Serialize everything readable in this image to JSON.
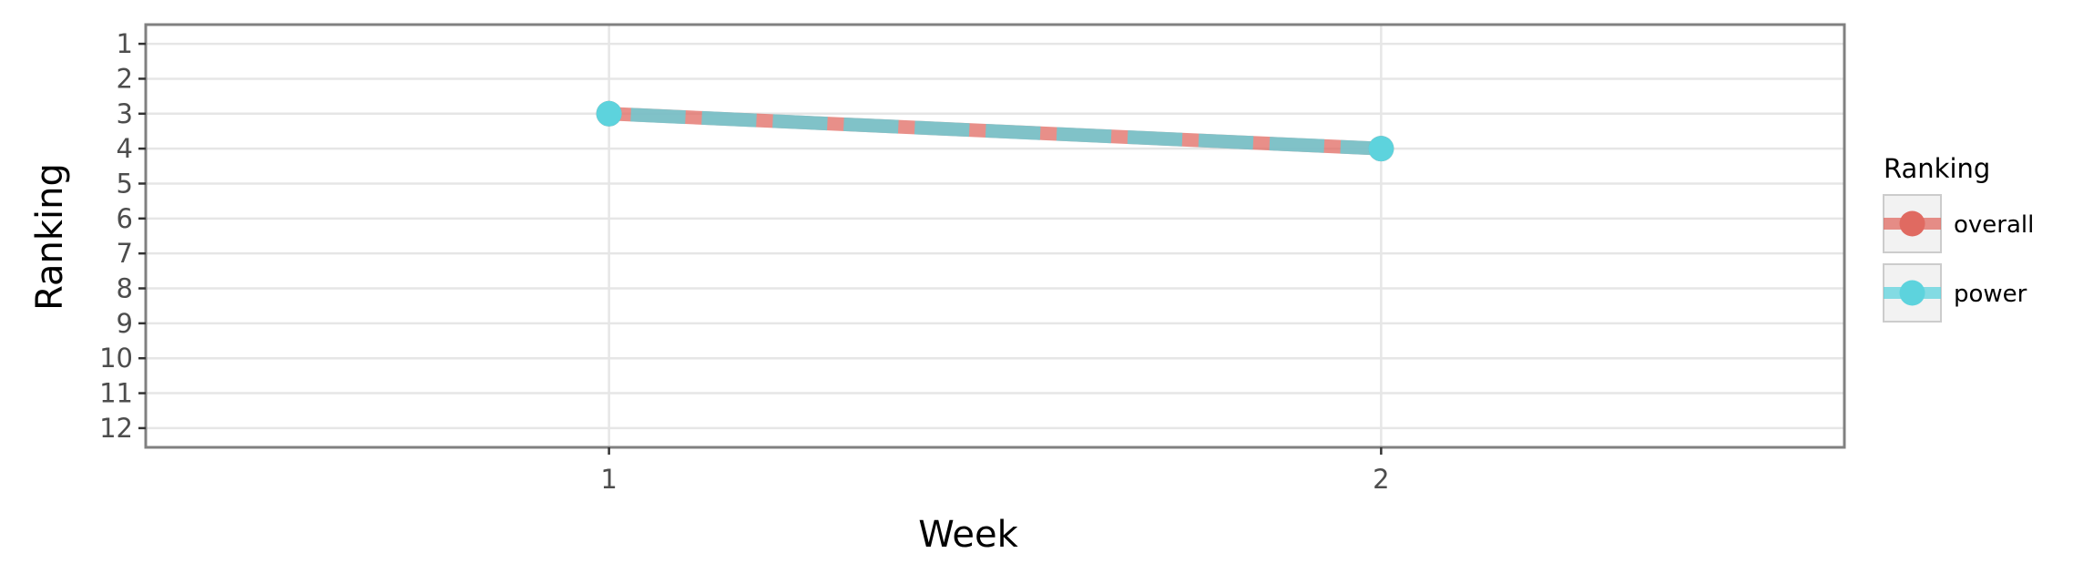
{
  "chart_data": {
    "type": "line",
    "xlabel": "Week",
    "ylabel": "Ranking",
    "x": [
      1,
      2
    ],
    "x_ticks": [
      "1",
      "2"
    ],
    "xlim": [
      0.4,
      2.6
    ],
    "y_ticks": [
      "1",
      "2",
      "3",
      "4",
      "5",
      "6",
      "7",
      "8",
      "9",
      "10",
      "11",
      "12"
    ],
    "ylim": [
      0.45,
      12.55
    ],
    "y_reversed": true,
    "grid": true,
    "series": [
      {
        "name": "overall",
        "values": [
          3,
          4
        ],
        "color": "#e06a61",
        "line_style": "solid"
      },
      {
        "name": "power",
        "values": [
          3,
          4
        ],
        "color": "#5dd3dd",
        "line_style": "dashed"
      }
    ],
    "legend": {
      "title": "Ranking",
      "position": "right"
    }
  }
}
